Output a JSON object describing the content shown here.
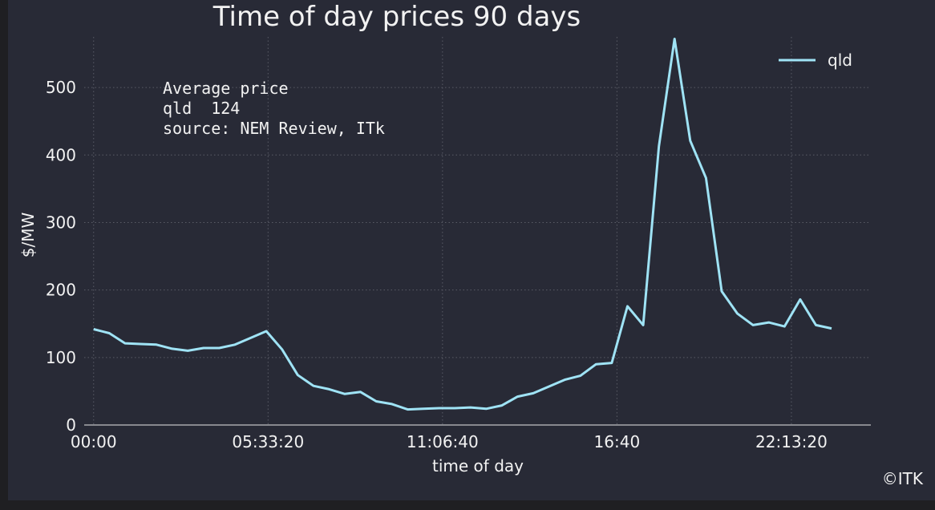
{
  "chart_data": {
    "type": "line",
    "title": "Time of day prices 90 days",
    "xlabel": "time of day",
    "ylabel": "$/MW",
    "ylim": [
      0,
      575
    ],
    "xlim": [
      -0.6,
      49.5
    ],
    "grid": true,
    "legend_position": "top-right",
    "y_ticks": [
      0,
      100,
      200,
      300,
      400,
      500
    ],
    "x_ticks": [
      {
        "value": 0,
        "label": "00:00"
      },
      {
        "value": 11.11,
        "label": "05:33:20"
      },
      {
        "value": 22.22,
        "label": "11:06:40"
      },
      {
        "value": 33.33,
        "label": "16:40"
      },
      {
        "value": 44.44,
        "label": "22:13:20"
      }
    ],
    "series": [
      {
        "name": "qld",
        "color": "#9fe3f5",
        "x": [
          0,
          1,
          2,
          3,
          4,
          5,
          6,
          7,
          8,
          9,
          10,
          11,
          12,
          13,
          14,
          15,
          16,
          17,
          18,
          19,
          20,
          21,
          22,
          23,
          24,
          25,
          26,
          27,
          28,
          29,
          30,
          31,
          32,
          33,
          34,
          35,
          36,
          37,
          38,
          39,
          40,
          41,
          42,
          43,
          44,
          45,
          46,
          47
        ],
        "values": [
          142,
          136,
          121,
          120,
          119,
          113,
          110,
          114,
          114,
          119,
          129,
          139,
          112,
          74,
          58,
          53,
          46,
          49,
          35,
          31,
          23,
          24,
          25,
          25,
          26,
          24,
          29,
          42,
          47,
          57,
          67,
          73,
          90,
          92,
          176,
          148,
          413,
          572,
          421,
          366,
          198,
          165,
          148,
          152,
          146,
          186,
          148,
          143
        ]
      }
    ],
    "annotation_lines": [
      "Average price",
      "qld  124",
      "source: NEM Review, ITk"
    ],
    "copyright": "©ITK"
  }
}
